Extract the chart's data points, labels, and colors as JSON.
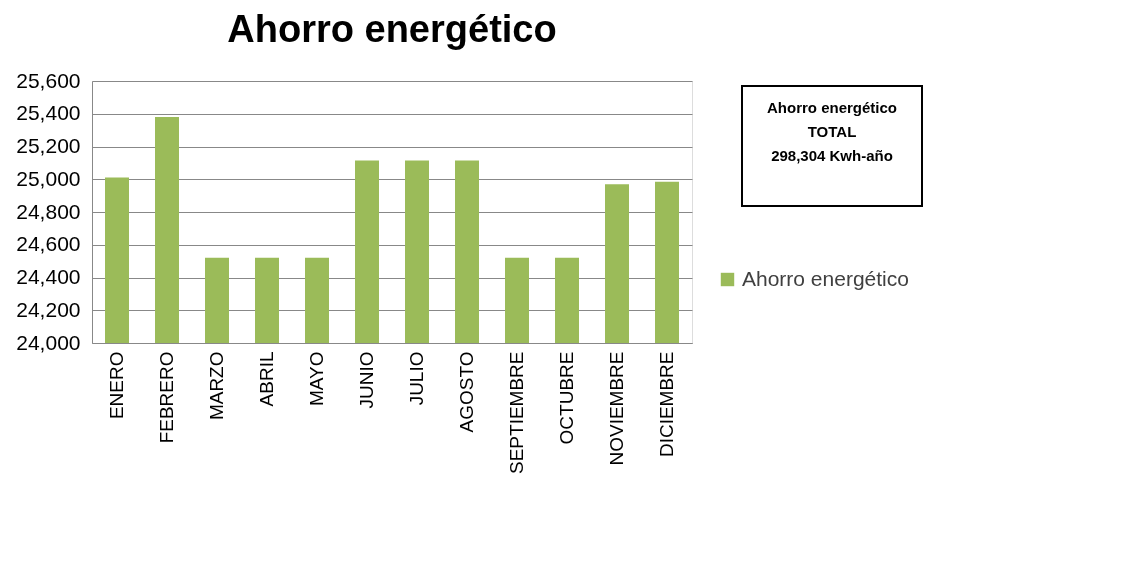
{
  "chart_data": {
    "type": "bar",
    "title": "Ahorro energético",
    "categories": [
      "ENERO",
      "FEBRERO",
      "MARZO",
      "ABRIL",
      "MAYO",
      "JUNIO",
      "JULIO",
      "AGOSTO",
      "SEPTIEMBRE",
      "OCTUBRE",
      "NOVIEMBRE",
      "DICIEMBRE"
    ],
    "series": [
      {
        "name": "Ahorro energético",
        "color": "#9bbb59",
        "values": [
          25010,
          25380,
          24520,
          24520,
          24520,
          25115,
          25115,
          25115,
          24520,
          24520,
          24970,
          24985
        ]
      }
    ],
    "ylim": [
      24000,
      25600
    ],
    "yticks": [
      {
        "value": 24000,
        "label": "24,000"
      },
      {
        "value": 24200,
        "label": "24,200"
      },
      {
        "value": 24400,
        "label": "24,400"
      },
      {
        "value": 24600,
        "label": "24,600"
      },
      {
        "value": 24800,
        "label": "24,800"
      },
      {
        "value": 25000,
        "label": "25,000"
      },
      {
        "value": 25200,
        "label": "25,200"
      },
      {
        "value": 25400,
        "label": "25,400"
      },
      {
        "value": 25600,
        "label": "25,600"
      }
    ],
    "grid": "y",
    "legend": "right",
    "annotations": [
      "Ahorro energético\nTOTAL\n\n298,304 Kwh-año"
    ]
  }
}
